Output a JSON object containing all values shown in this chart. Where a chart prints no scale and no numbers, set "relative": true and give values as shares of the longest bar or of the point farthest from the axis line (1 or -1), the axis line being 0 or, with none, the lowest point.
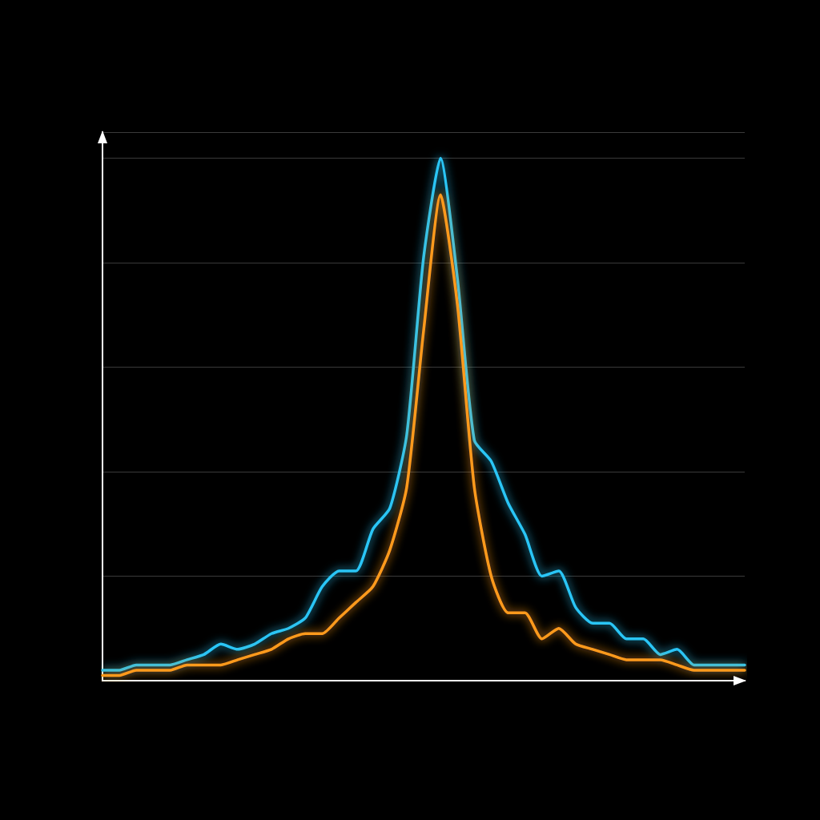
{
  "chart_data": {
    "type": "line",
    "relative": true,
    "categories": [
      null,
      null,
      null,
      null,
      null,
      null,
      null,
      null,
      null,
      null,
      null,
      null,
      null,
      null,
      null,
      null,
      null,
      null,
      null,
      null,
      null,
      null,
      null,
      null,
      null,
      null,
      null,
      null,
      null,
      null,
      null,
      null,
      null,
      null,
      null,
      null,
      null,
      null,
      null
    ],
    "grid": "y",
    "marker": "none",
    "line_style": "solid",
    "series": [
      {
        "color": "#29c5f6",
        "values": [
          0.02,
          0.02,
          0.03,
          0.03,
          0.03,
          0.04,
          0.05,
          0.07,
          0.06,
          0.07,
          0.09,
          0.1,
          0.12,
          0.18,
          0.21,
          0.21,
          0.29,
          0.33,
          0.47,
          0.81,
          1.0,
          0.77,
          0.46,
          0.42,
          0.34,
          0.28,
          0.2,
          0.21,
          0.14,
          0.11,
          0.11,
          0.08,
          0.08,
          0.05,
          0.06,
          0.03,
          0.03,
          0.03,
          0.03
        ]
      },
      {
        "color": "#ff9a1f",
        "values": [
          0.01,
          0.01,
          0.02,
          0.02,
          0.02,
          0.03,
          0.03,
          0.03,
          0.04,
          0.05,
          0.06,
          0.08,
          0.09,
          0.09,
          0.12,
          0.15,
          0.18,
          0.25,
          0.37,
          0.67,
          0.93,
          0.72,
          0.37,
          0.2,
          0.13,
          0.13,
          0.08,
          0.1,
          0.07,
          0.06,
          0.05,
          0.04,
          0.04,
          0.04,
          0.03,
          0.02,
          0.02,
          0.02,
          0.02
        ]
      }
    ]
  }
}
